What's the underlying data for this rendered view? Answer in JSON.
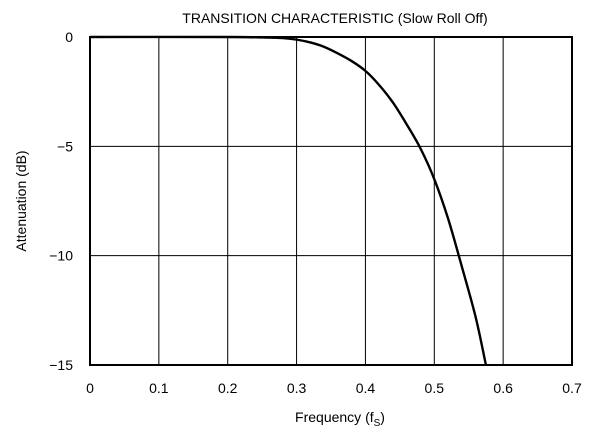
{
  "chart_data": {
    "type": "line",
    "title": "TRANSITION CHARACTERISTIC (Slow Roll Off)",
    "xlabel": "Frequency (f",
    "xlabel_subscript": "S",
    "xlabel_suffix": ")",
    "ylabel": "Attenuation (dB)",
    "xlim": [
      0,
      0.7
    ],
    "ylim": [
      -15,
      0
    ],
    "xticks": [
      0,
      0.1,
      0.2,
      0.3,
      0.4,
      0.5,
      0.6,
      0.7
    ],
    "xtick_labels": [
      "0",
      "0.1",
      "0.2",
      "0.3",
      "0.4",
      "0.5",
      "0.6",
      "0.7"
    ],
    "yticks": [
      0,
      -5,
      -10,
      -15
    ],
    "ytick_labels": [
      "0",
      "−5",
      "−10",
      "−15"
    ],
    "grid": true,
    "line_color": "#000000",
    "series": [
      {
        "x": [
          0,
          0.2,
          0.25,
          0.28,
          0.3,
          0.32,
          0.34,
          0.36,
          0.38,
          0.4,
          0.42,
          0.44,
          0.46,
          0.48,
          0.5,
          0.52,
          0.54,
          0.56,
          0.575
        ],
        "y": [
          0,
          0,
          -0.02,
          -0.05,
          -0.12,
          -0.25,
          -0.45,
          -0.75,
          -1.1,
          -1.55,
          -2.2,
          -3.0,
          -4.0,
          -5.1,
          -6.5,
          -8.3,
          -10.5,
          -12.8,
          -15
        ]
      }
    ]
  }
}
